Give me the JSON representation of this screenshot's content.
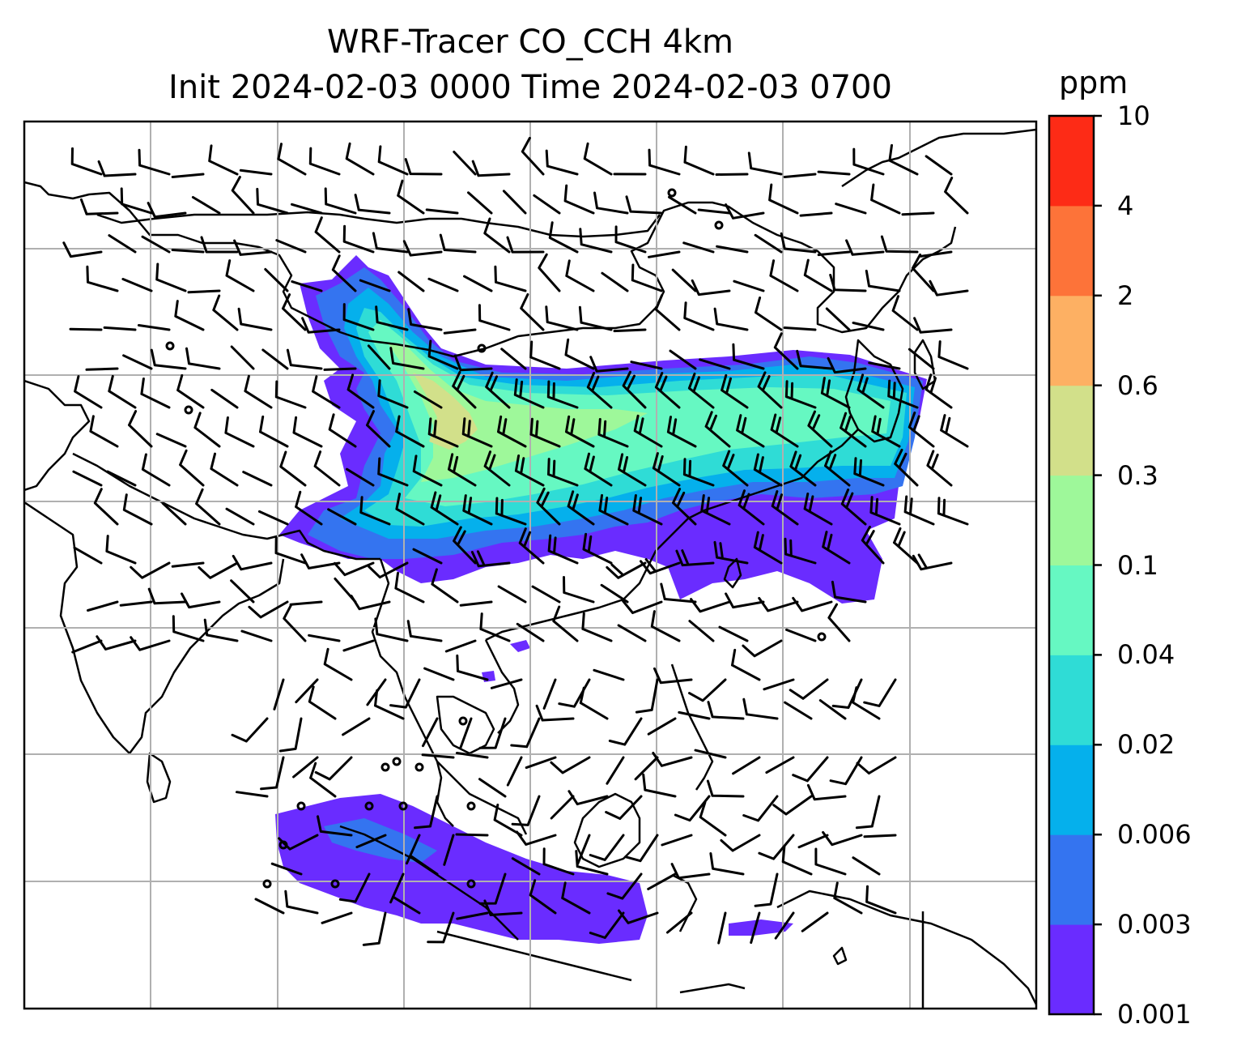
{
  "title_line1": "WRF-Tracer CO_CCH 4km",
  "title_line2": "Init 2024-02-03 0000 Time 2024-02-03 0700",
  "colorbar": {
    "unit": "ppm",
    "levels": [
      "0.001",
      "0.003",
      "0.006",
      "0.02",
      "0.04",
      "0.1",
      "0.3",
      "0.6",
      "2",
      "4",
      "10"
    ],
    "colors": [
      "#6a2cff",
      "#3474f0",
      "#05b0ec",
      "#2fdcd6",
      "#66f8c2",
      "#9ef89a",
      "#d2e08a",
      "#fdb063",
      "#fd7339",
      "#fd2b16"
    ]
  },
  "map": {
    "field": "CO_CCH tracer concentration",
    "wind_barbs": true,
    "gridlines": true
  }
}
